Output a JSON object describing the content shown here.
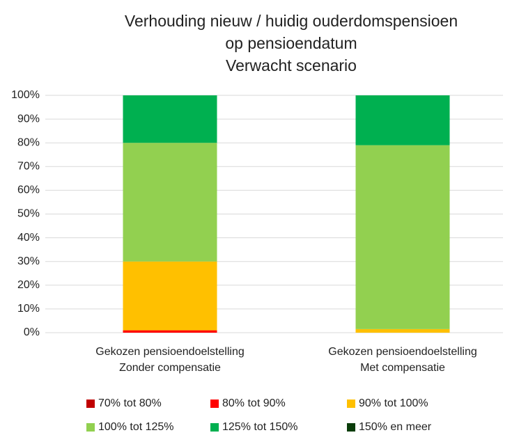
{
  "chart_data": {
    "type": "stacked_bar",
    "title": [
      "Verhouding nieuw / huidig ouderdomspensioen",
      "op pensioendatum",
      "Verwacht scenario"
    ],
    "categories": [
      [
        "Gekozen pensioendoelstelling",
        "Zonder compensatie"
      ],
      [
        "Gekozen pensioendoelstelling",
        "Met compensatie"
      ]
    ],
    "series": [
      {
        "name": "70% tot 80%",
        "color": "#c00000",
        "values": [
          0,
          0
        ]
      },
      {
        "name": "80% tot 90%",
        "color": "#ff0000",
        "values": [
          1,
          0
        ]
      },
      {
        "name": "90% tot 100%",
        "color": "#ffc000",
        "values": [
          29,
          1.5
        ]
      },
      {
        "name": "100% tot 125%",
        "color": "#92d050",
        "values": [
          50,
          77.5
        ]
      },
      {
        "name": "125% tot 150%",
        "color": "#00b050",
        "values": [
          20,
          21
        ]
      },
      {
        "name": "150% en meer",
        "color": "#0b3d0b",
        "values": [
          0,
          0
        ]
      }
    ],
    "ylim": [
      0,
      100
    ],
    "yticks": [
      {
        "value": 0,
        "label": "0%"
      },
      {
        "value": 10,
        "label": "10%"
      },
      {
        "value": 20,
        "label": "20%"
      },
      {
        "value": 30,
        "label": "30%"
      },
      {
        "value": 40,
        "label": "40%"
      },
      {
        "value": 50,
        "label": "50%"
      },
      {
        "value": 60,
        "label": "60%"
      },
      {
        "value": 70,
        "label": "70%"
      },
      {
        "value": 80,
        "label": "80%"
      },
      {
        "value": 90,
        "label": "90%"
      },
      {
        "value": 100,
        "label": "100%"
      }
    ],
    "grid": true,
    "legend": "bottom"
  }
}
